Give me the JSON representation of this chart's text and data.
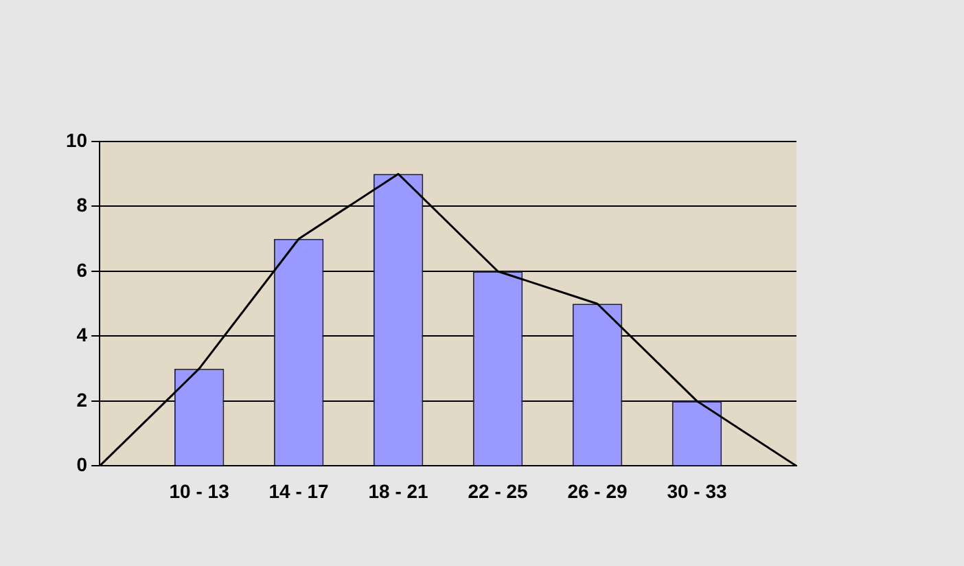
{
  "chart_data": {
    "type": "bar",
    "categories": [
      null,
      "10 - 13",
      "14 - 17",
      "18 - 21",
      "22 - 25",
      "26 - 29",
      "30 - 33",
      null
    ],
    "series": [
      {
        "color": "#9999ff",
        "values": [
          null,
          3,
          7,
          9,
          6,
          5,
          2,
          null
        ]
      },
      {
        "type": "line",
        "color": "#000000",
        "values": [
          0,
          3,
          7,
          9,
          6,
          5,
          2,
          0
        ]
      }
    ],
    "ylim": [
      0,
      10
    ],
    "yticks": [
      0,
      2,
      4,
      6,
      8,
      10
    ],
    "grid": "y",
    "legend": false,
    "marker": "none"
  }
}
